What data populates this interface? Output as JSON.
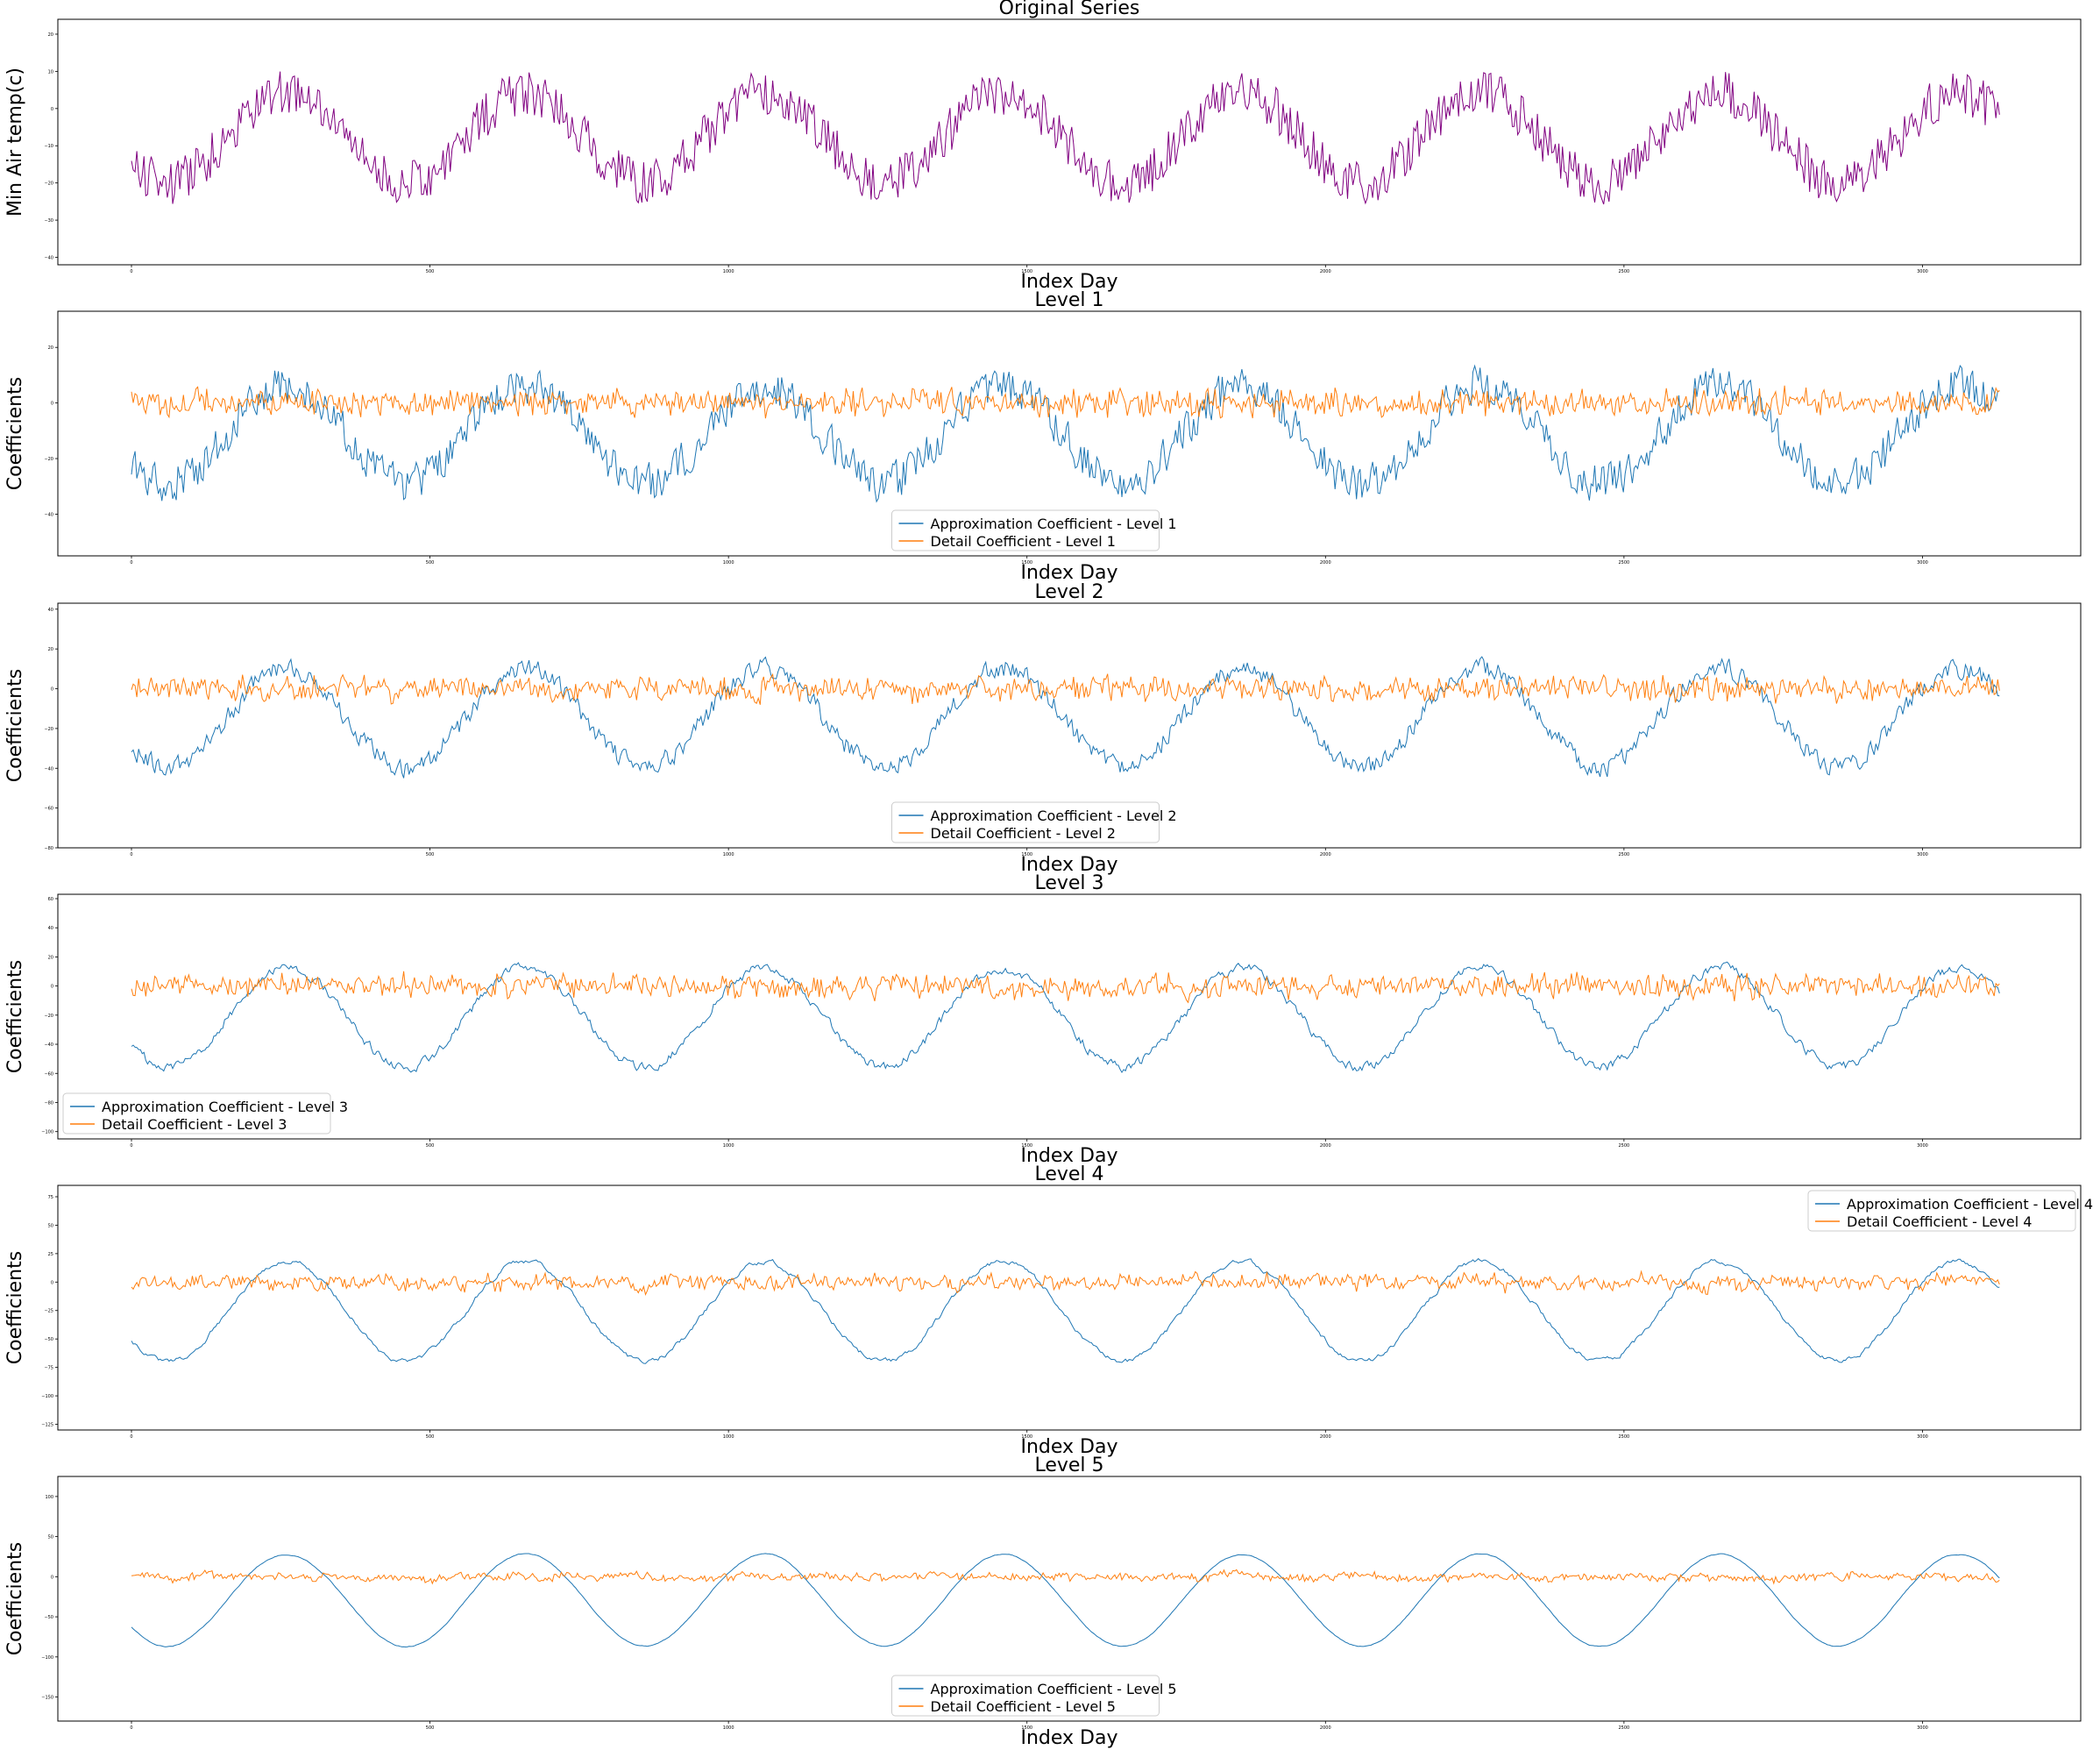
{
  "chart_data": [
    {
      "type": "line",
      "title": "Original Series",
      "xlabel": "Index Day",
      "ylabel": "Min Air temp(c)",
      "xlim": [
        0,
        3130
      ],
      "ylim": [
        -42,
        24
      ],
      "xticks": [
        0,
        500,
        1000,
        1500,
        2000,
        2500,
        3000
      ],
      "yticks": [
        -40,
        -30,
        -20,
        -10,
        0,
        10,
        20
      ],
      "legend": null,
      "period": 400,
      "series": [
        {
          "color": "#800080",
          "center": -9,
          "amplitude": 24,
          "noise": 6,
          "x_start": 0,
          "x_end": 3130,
          "phase": 0.85,
          "trend": 0
        }
      ]
    },
    {
      "type": "line",
      "title": "Level 1",
      "xlabel": "Index Day",
      "ylabel": "Coefficients",
      "xlim": [
        0,
        3130
      ],
      "ylim": [
        -55,
        33
      ],
      "xticks": [
        0,
        500,
        1000,
        1500,
        2000,
        2500,
        3000
      ],
      "yticks": [
        -40,
        -20,
        0,
        20
      ],
      "legend": "lower center",
      "period": 400,
      "series": [
        {
          "name": "Approximation Coefficient - Level 1",
          "color": "#1f77b4",
          "center": -13,
          "amplitude": 35,
          "noise": 8,
          "x_start": 0,
          "x_end": 3130,
          "phase": 0.85,
          "trend": 0
        },
        {
          "name": "Detail Coefficient - Level 1",
          "color": "#ff7f0e",
          "center": 0,
          "amplitude": 0,
          "noise": 4,
          "x_start": 0,
          "x_end": 3130,
          "phase": 0,
          "trend": 0
        }
      ]
    },
    {
      "type": "line",
      "title": "Level 2",
      "xlabel": "Index Day",
      "ylabel": "Coefficients",
      "xlim": [
        0,
        3130
      ],
      "ylim": [
        -80,
        43
      ],
      "xticks": [
        0,
        500,
        1000,
        1500,
        2000,
        2500,
        3000
      ],
      "yticks": [
        -80,
        -60,
        -40,
        -20,
        0,
        20,
        40
      ],
      "legend": "lower center",
      "period": 400,
      "series": [
        {
          "name": "Approximation Coefficient - Level 2",
          "color": "#1f77b4",
          "center": -17,
          "amplitude": 50,
          "noise": 7,
          "x_start": 0,
          "x_end": 3130,
          "phase": 0.85,
          "trend": 0
        },
        {
          "name": "Detail Coefficient - Level 2",
          "color": "#ff7f0e",
          "center": 0,
          "amplitude": 0,
          "noise": 6,
          "x_start": 0,
          "x_end": 3130,
          "phase": 0,
          "trend": 0
        }
      ]
    },
    {
      "type": "line",
      "title": "Level 3",
      "xlabel": "Index Day",
      "ylabel": "Coefficients",
      "xlim": [
        0,
        3130
      ],
      "ylim": [
        -105,
        63
      ],
      "xticks": [
        0,
        500,
        1000,
        1500,
        2000,
        2500,
        3000
      ],
      "yticks": [
        -100,
        -80,
        -60,
        -40,
        -20,
        0,
        20,
        40,
        60
      ],
      "legend": "lower left",
      "period": 400,
      "series": [
        {
          "name": "Approximation Coefficient - Level 3",
          "color": "#1f77b4",
          "center": -25,
          "amplitude": 68,
          "noise": 6,
          "x_start": 0,
          "x_end": 3130,
          "phase": 0.85,
          "trend": 0
        },
        {
          "name": "Detail Coefficient - Level 3",
          "color": "#ff7f0e",
          "center": 0,
          "amplitude": 0,
          "noise": 10,
          "x_start": 0,
          "x_end": 3130,
          "phase": 0,
          "trend": 0
        }
      ]
    },
    {
      "type": "line",
      "title": "Level 4",
      "xlabel": "Index Day",
      "ylabel": "Coefficients",
      "xlim": [
        0,
        3130
      ],
      "ylim": [
        -130,
        85
      ],
      "xticks": [
        0,
        500,
        1000,
        1500,
        2000,
        2500,
        3000
      ],
      "yticks": [
        -125,
        -100,
        -75,
        -50,
        -25,
        0,
        25,
        50,
        75
      ],
      "legend": "upper right",
      "period": 400,
      "series": [
        {
          "name": "Approximation Coefficient - Level 4",
          "color": "#1f77b4",
          "center": -30,
          "amplitude": 88,
          "noise": 6,
          "x_start": 0,
          "x_end": 3130,
          "phase": 0.85,
          "trend": 0
        },
        {
          "name": "Detail Coefficient - Level 4",
          "color": "#ff7f0e",
          "center": 0,
          "amplitude": 0,
          "noise": 12,
          "x_start": 0,
          "x_end": 3130,
          "phase": 0,
          "trend": 0
        }
      ]
    },
    {
      "type": "line",
      "title": "Level 5",
      "xlabel": "Index Day",
      "ylabel": "Coefficients",
      "xlim": [
        0,
        3130
      ],
      "ylim": [
        -180,
        125
      ],
      "xticks": [
        0,
        500,
        1000,
        1500,
        2000,
        2500,
        3000
      ],
      "yticks": [
        -150,
        -100,
        -50,
        0,
        50,
        100
      ],
      "legend": "lower center",
      "period": 400,
      "series": [
        {
          "name": "Approximation Coefficient - Level 5",
          "color": "#1f77b4",
          "center": -35,
          "amplitude": 115,
          "noise": 4,
          "x_start": 0,
          "x_end": 3130,
          "phase": 0.85,
          "trend": 0
        },
        {
          "name": "Detail Coefficient - Level 5",
          "color": "#ff7f0e",
          "center": 0,
          "amplitude": 0,
          "noise": 16,
          "x_start": 0,
          "x_end": 3130,
          "phase": 0,
          "trend": 0
        }
      ]
    }
  ]
}
